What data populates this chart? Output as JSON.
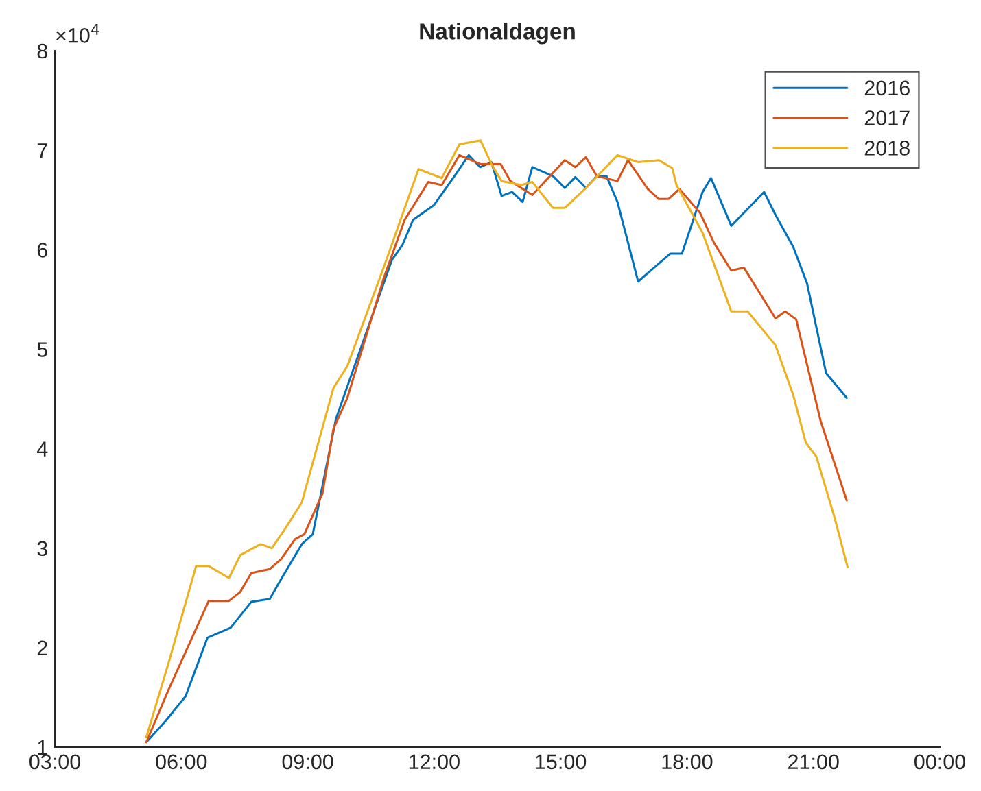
{
  "chart_data": {
    "type": "line",
    "title": "Nationaldagen",
    "xlim": [
      3,
      24
    ],
    "xticks": [
      {
        "value": 3,
        "label": "03:00"
      },
      {
        "value": 6,
        "label": "06:00"
      },
      {
        "value": 9,
        "label": "09:00"
      },
      {
        "value": 12,
        "label": "12:00"
      },
      {
        "value": 15,
        "label": "15:00"
      },
      {
        "value": 18,
        "label": "18:00"
      },
      {
        "value": 21,
        "label": "21:00"
      },
      {
        "value": 24,
        "label": "00:00"
      }
    ],
    "ylim": [
      1,
      8
    ],
    "yticks": [
      1,
      2,
      3,
      4,
      5,
      6,
      7,
      8
    ],
    "annotations": [
      "×10$^{4}$"
    ],
    "legend": "top right",
    "grid": false,
    "line_style": "solid",
    "marker": "none",
    "series": [
      {
        "name": "2016",
        "color": "#0072bd",
        "x": [
          5.17,
          5.6,
          6.1,
          6.62,
          7.17,
          7.66,
          8.1,
          8.37,
          8.86,
          9.12,
          9.67,
          10.5,
          11.0,
          11.25,
          11.5,
          12.0,
          12.5,
          12.82,
          13.09,
          13.36,
          13.6,
          13.85,
          14.1,
          14.33,
          14.82,
          15.1,
          15.35,
          15.6,
          15.86,
          16.09,
          16.35,
          16.84,
          17.22,
          17.6,
          17.88,
          18.37,
          18.57,
          19.05,
          19.83,
          20.1,
          20.52,
          20.85,
          21.3,
          21.79
        ],
        "values": [
          1.05,
          1.25,
          1.51,
          2.1,
          2.2,
          2.46,
          2.49,
          2.69,
          3.04,
          3.14,
          4.3,
          5.3,
          5.9,
          6.05,
          6.3,
          6.45,
          6.75,
          6.95,
          6.83,
          6.88,
          6.54,
          6.58,
          6.48,
          6.83,
          6.74,
          6.62,
          6.73,
          6.62,
          6.74,
          6.74,
          6.48,
          5.68,
          5.82,
          5.96,
          5.96,
          6.58,
          6.72,
          6.24,
          6.58,
          6.35,
          6.03,
          5.66,
          4.76,
          4.51
        ]
      },
      {
        "name": "2017",
        "color": "#d95319",
        "x": [
          5.17,
          5.7,
          6.65,
          7.13,
          7.4,
          7.66,
          8.1,
          8.37,
          8.7,
          8.92,
          9.35,
          9.61,
          9.94,
          10.8,
          11.3,
          11.86,
          12.18,
          12.6,
          13.1,
          13.58,
          13.81,
          14.33,
          15.1,
          15.35,
          15.6,
          15.86,
          16.35,
          16.6,
          17.07,
          17.33,
          17.56,
          17.82,
          18.31,
          18.64,
          19.05,
          19.35,
          20.1,
          20.33,
          20.59,
          21.17,
          21.79
        ],
        "values": [
          1.05,
          1.58,
          2.47,
          2.47,
          2.56,
          2.75,
          2.79,
          2.89,
          3.09,
          3.14,
          3.55,
          4.2,
          4.51,
          5.71,
          6.3,
          6.68,
          6.65,
          6.95,
          6.86,
          6.86,
          6.69,
          6.55,
          6.9,
          6.83,
          6.93,
          6.74,
          6.69,
          6.9,
          6.61,
          6.51,
          6.51,
          6.61,
          6.37,
          6.07,
          5.79,
          5.82,
          5.31,
          5.38,
          5.3,
          4.28,
          3.48
        ]
      },
      {
        "name": "2018",
        "color": "#edb120",
        "x": [
          5.17,
          5.7,
          6.35,
          6.65,
          7.13,
          7.4,
          7.88,
          8.15,
          8.44,
          8.86,
          9.61,
          9.94,
          10.8,
          11.63,
          12.18,
          12.6,
          13.1,
          13.36,
          13.6,
          14.07,
          14.33,
          14.82,
          15.1,
          15.6,
          16.35,
          16.84,
          17.33,
          17.65,
          17.75,
          18.37,
          19.05,
          19.44,
          20.1,
          20.52,
          20.82,
          21.07,
          21.5,
          21.81
        ],
        "values": [
          1.1,
          1.85,
          2.82,
          2.82,
          2.7,
          2.93,
          3.04,
          3.0,
          3.18,
          3.46,
          4.61,
          4.83,
          5.82,
          6.81,
          6.72,
          7.06,
          7.1,
          6.86,
          6.69,
          6.65,
          6.68,
          6.42,
          6.42,
          6.62,
          6.95,
          6.88,
          6.9,
          6.82,
          6.65,
          6.17,
          5.38,
          5.38,
          5.04,
          4.54,
          4.06,
          3.92,
          3.31,
          2.81
        ]
      }
    ]
  }
}
